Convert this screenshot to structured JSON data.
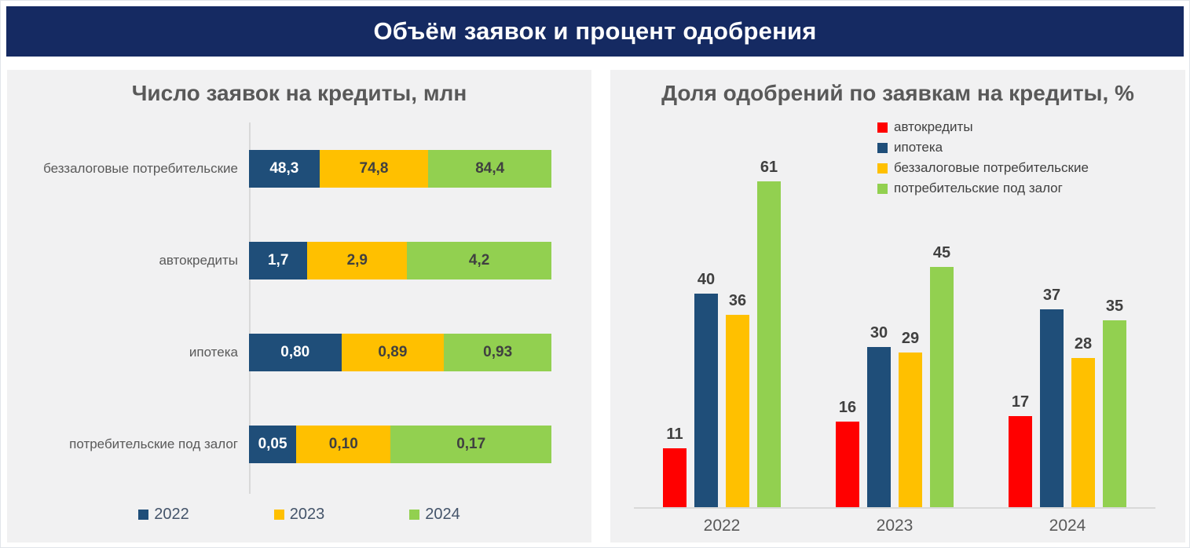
{
  "header": {
    "title": "Объём заявок и процент одобрения",
    "background": "#152a62"
  },
  "colors": {
    "panel_background": "#f1f1f2",
    "title_text": "#595959",
    "value_text_dark": "#404040",
    "axis_line": "#d9d9d9",
    "red": "#ff0000",
    "navy": "#1f4e79",
    "yellow": "#ffc000",
    "green": "#92d050"
  },
  "chart_data": [
    {
      "type": "bar",
      "subtype": "horizontal-100pct-stacked",
      "title": "Число заявок на кредиты, млн",
      "categories": [
        "беззалоговые потребительские",
        "автокредиты",
        "ипотека",
        "потребительские под залог"
      ],
      "series": [
        {
          "name": "2022",
          "color": "#1f4e79",
          "label_color": "#ffffff",
          "values": [
            48.3,
            1.7,
            0.8,
            0.05
          ],
          "labels": [
            "48,3",
            "1,7",
            "0,80",
            "0,05"
          ]
        },
        {
          "name": "2023",
          "color": "#ffc000",
          "label_color": "#404040",
          "values": [
            74.8,
            2.9,
            0.89,
            0.1
          ],
          "labels": [
            "74,8",
            "2,9",
            "0,89",
            "0,10"
          ]
        },
        {
          "name": "2024",
          "color": "#92d050",
          "label_color": "#404040",
          "values": [
            84.4,
            4.2,
            0.93,
            0.17
          ],
          "labels": [
            "84,4",
            "4,2",
            "0,93",
            "0,17"
          ]
        }
      ],
      "legend": [
        "2022",
        "2023",
        "2024"
      ],
      "legend_position": "bottom",
      "grid": false
    },
    {
      "type": "bar",
      "subtype": "grouped-vertical",
      "title": "Доля одобрений по заявкам на кредиты, %",
      "categories": [
        "2022",
        "2023",
        "2024"
      ],
      "series": [
        {
          "name": "автокредиты",
          "color": "#ff0000",
          "values": [
            11,
            16,
            17
          ]
        },
        {
          "name": "ипотека",
          "color": "#1f4e79",
          "values": [
            40,
            30,
            37
          ]
        },
        {
          "name": "беззалоговые потребительские",
          "color": "#ffc000",
          "values": [
            36,
            29,
            28
          ]
        },
        {
          "name": "потребительские под залог",
          "color": "#92d050",
          "values": [
            61,
            45,
            35
          ]
        }
      ],
      "legend_position": "top-right",
      "ylim": [
        0,
        67
      ],
      "grid": false
    }
  ]
}
